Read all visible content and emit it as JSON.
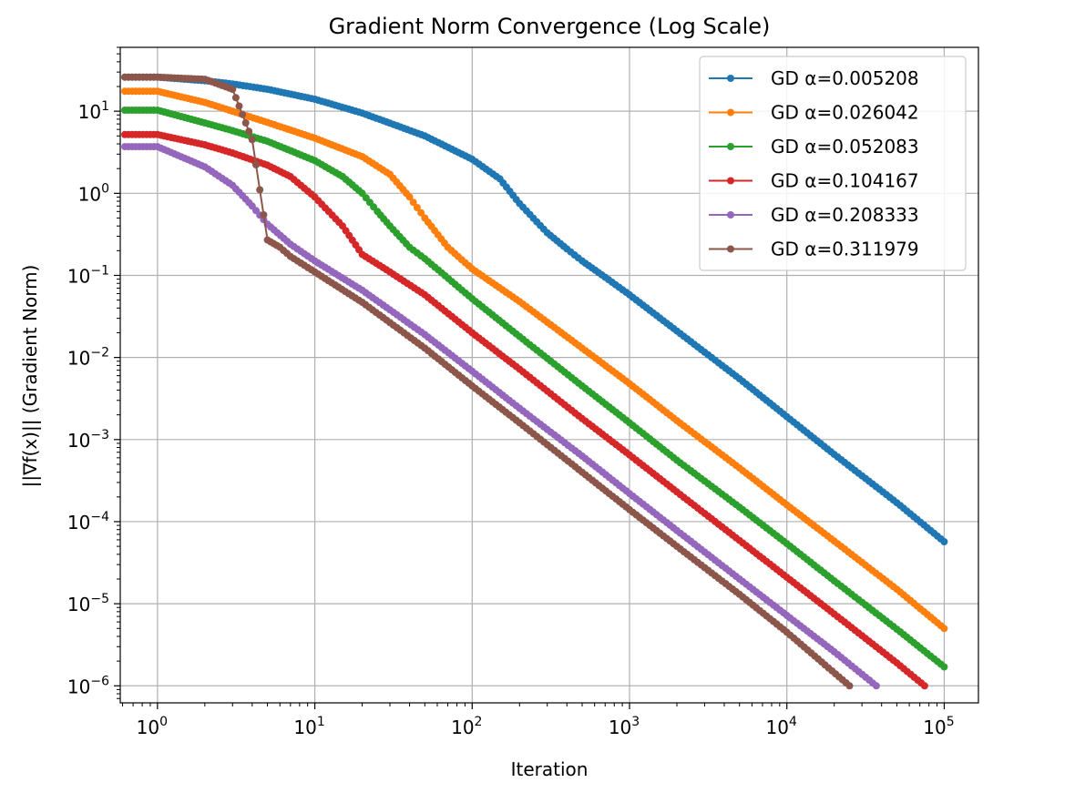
{
  "chart_data": {
    "type": "line",
    "title": "Gradient Norm Convergence (Log Scale)",
    "xlabel": "Iteration",
    "ylabel": "||∇f(x)|| (Gradient Norm)",
    "xscale": "log",
    "yscale": "log",
    "xlim": [
      0.58,
      165000
    ],
    "ylim": [
      6.2e-07,
      60
    ],
    "x_ticks": [
      {
        "value": 1,
        "base": "10",
        "exp": "0"
      },
      {
        "value": 10,
        "base": "10",
        "exp": "1"
      },
      {
        "value": 100,
        "base": "10",
        "exp": "2"
      },
      {
        "value": 1000,
        "base": "10",
        "exp": "3"
      },
      {
        "value": 10000,
        "base": "10",
        "exp": "4"
      },
      {
        "value": 100000,
        "base": "10",
        "exp": "5"
      }
    ],
    "y_ticks": [
      {
        "value": 10,
        "base": "10",
        "exp": "1"
      },
      {
        "value": 1,
        "base": "10",
        "exp": "0"
      },
      {
        "value": 0.1,
        "base": "10",
        "exp": "−1"
      },
      {
        "value": 0.01,
        "base": "10",
        "exp": "−2"
      },
      {
        "value": 0.001,
        "base": "10",
        "exp": "−3"
      },
      {
        "value": 0.0001,
        "base": "10",
        "exp": "−4"
      },
      {
        "value": 1e-05,
        "base": "10",
        "exp": "−5"
      },
      {
        "value": 1e-06,
        "base": "10",
        "exp": "−6"
      }
    ],
    "grid": true,
    "legend_position": "top-right",
    "series": [
      {
        "name": "GD α=0.005208",
        "color": "#1f77b4",
        "x": [
          0.62,
          1,
          2,
          3,
          5,
          10,
          20,
          50,
          100,
          150,
          200,
          300,
          400,
          500,
          700,
          1000,
          2000,
          5000,
          10000,
          20000,
          50000,
          100000
        ],
        "y": [
          26,
          26,
          23.5,
          21.5,
          18.5,
          14,
          9.5,
          5,
          2.6,
          1.5,
          0.75,
          0.33,
          0.21,
          0.15,
          0.095,
          0.058,
          0.021,
          0.0055,
          0.0019,
          0.00066,
          0.00017,
          5.7e-05
        ]
      },
      {
        "name": "GD α=0.026042",
        "color": "#ff7f0e",
        "x": [
          0.62,
          1,
          2,
          3,
          5,
          10,
          20,
          30,
          40,
          50,
          70,
          100,
          200,
          500,
          1000,
          2000,
          5000,
          10000,
          20000,
          50000,
          100000
        ],
        "y": [
          17.5,
          17.5,
          12.8,
          10,
          7.3,
          4.7,
          2.8,
          1.7,
          0.9,
          0.5,
          0.22,
          0.12,
          0.048,
          0.013,
          0.0048,
          0.0017,
          0.00045,
          0.00016,
          5.8e-05,
          1.5e-05,
          5e-06
        ]
      },
      {
        "name": "GD α=0.052083",
        "color": "#2ca02c",
        "x": [
          0.62,
          1,
          2,
          3,
          5,
          10,
          15,
          20,
          25,
          30,
          40,
          50,
          100,
          200,
          500,
          1000,
          2000,
          5000,
          10000,
          20000,
          50000,
          100000
        ],
        "y": [
          10.3,
          10.3,
          7.2,
          5.8,
          4.3,
          2.5,
          1.6,
          1.0,
          0.6,
          0.4,
          0.22,
          0.16,
          0.052,
          0.018,
          0.0045,
          0.0016,
          0.00056,
          0.00015,
          5.4e-05,
          1.9e-05,
          4.9e-06,
          1.7e-06
        ]
      },
      {
        "name": "GD α=0.104167",
        "color": "#d62728",
        "x": [
          0.62,
          1,
          2,
          3,
          5,
          7,
          10,
          15,
          20,
          30,
          50,
          100,
          200,
          500,
          1000,
          2000,
          5000,
          10000,
          20000,
          50000,
          75000
        ],
        "y": [
          5.2,
          5.2,
          3.9,
          3.1,
          2.2,
          1.6,
          0.9,
          0.4,
          0.18,
          0.11,
          0.058,
          0.02,
          0.0072,
          0.0018,
          0.00065,
          0.00023,
          5.9e-05,
          2.1e-05,
          7.5e-06,
          1.9e-06,
          1e-06
        ]
      },
      {
        "name": "GD α=0.208333",
        "color": "#9467bd",
        "x": [
          0.62,
          1,
          2,
          3,
          4,
          5,
          7,
          10,
          20,
          50,
          100,
          200,
          500,
          1000,
          2000,
          5000,
          10000,
          20000,
          37000
        ],
        "y": [
          3.7,
          3.7,
          2.1,
          1.25,
          0.7,
          0.42,
          0.24,
          0.15,
          0.066,
          0.019,
          0.0068,
          0.0024,
          0.00063,
          0.00022,
          7.8e-05,
          2e-05,
          7.2e-06,
          2.6e-06,
          1e-06
        ]
      },
      {
        "name": "GD α=0.311979",
        "color": "#8c564b",
        "x": [
          0.62,
          1,
          2,
          3,
          4,
          5,
          6,
          7,
          10,
          20,
          50,
          100,
          200,
          500,
          1000,
          2000,
          5000,
          10000,
          25000
        ],
        "y": [
          26,
          26,
          24.5,
          18.5,
          4.5,
          0.27,
          0.22,
          0.17,
          0.11,
          0.047,
          0.013,
          0.0045,
          0.0016,
          0.0004,
          0.00014,
          5e-05,
          1.3e-05,
          4.5e-06,
          1e-06
        ]
      }
    ]
  }
}
